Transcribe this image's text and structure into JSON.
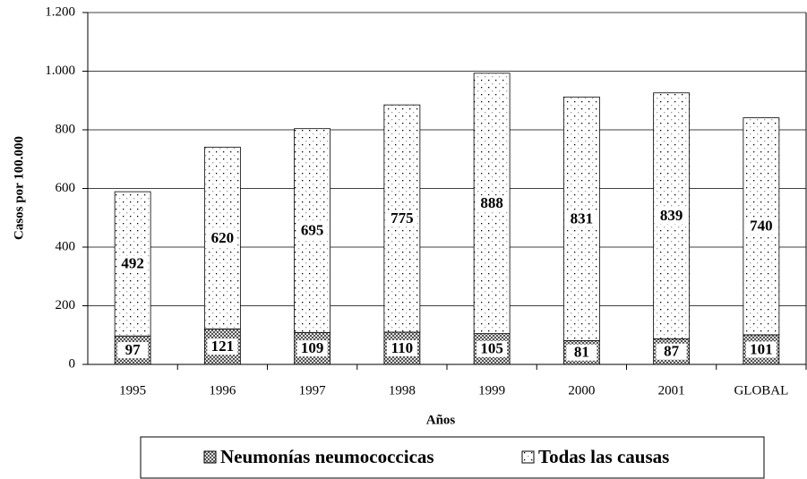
{
  "chart_data": {
    "type": "stacked_bar",
    "x_label": "Años",
    "y_label": "Casos por 100.000",
    "categories": [
      "1995",
      "1996",
      "1997",
      "1998",
      "1999",
      "2000",
      "2001",
      "GLOBAL"
    ],
    "series": [
      {
        "name": "Neumonías neumococcicas",
        "color": "#555555",
        "values": [
          97,
          121,
          109,
          110,
          105,
          81,
          87,
          101
        ]
      },
      {
        "name": "Todas las causas",
        "color": "#000000",
        "values": [
          492,
          620,
          695,
          775,
          888,
          831,
          839,
          740
        ]
      }
    ],
    "ylim": [
      0,
      1200
    ],
    "yticks": [
      0,
      200,
      400,
      600,
      800,
      {
        "value": 1000,
        "label": "1.000"
      },
      {
        "value": 1200,
        "label": "1.200"
      }
    ],
    "grid": true
  }
}
